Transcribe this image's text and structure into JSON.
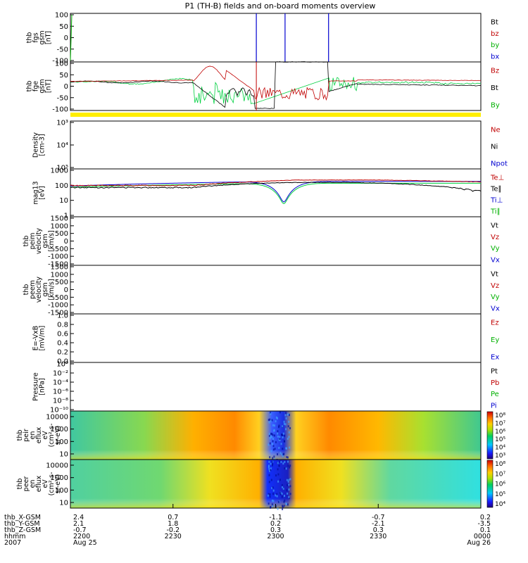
{
  "chart_data": {
    "type": "line",
    "title": "P1 (TH-B) fields and on-board moments overview",
    "panels": [
      {
        "id": "fgs",
        "ylabel_lines": [
          "thb",
          "fgs",
          "gsm",
          "[nT]"
        ],
        "scale": "linear",
        "ylim": [
          -100,
          100
        ],
        "ticks": [
          "100",
          "50",
          "0",
          "-50",
          "-100"
        ],
        "legend": [
          {
            "name": "Bt",
            "color": "#000000"
          },
          {
            "name": "bz",
            "color": "#c00000"
          },
          {
            "name": "by",
            "color": "#00b000"
          },
          {
            "name": "bx",
            "color": "#0000d0"
          }
        ],
        "series": [
          {
            "name": "bx",
            "x": [
              0.25,
              0.25,
              0.25,
              0.25,
              0.5,
              0.5,
              0.5,
              0.5
            ],
            "values": [
              100,
              -100,
              null,
              null,
              null,
              100,
              -100,
              null
            ]
          },
          {
            "name": "bx-2",
            "x": [
              0.62,
              0.62
            ],
            "values": [
              100,
              -100
            ]
          }
        ]
      },
      {
        "id": "fge",
        "ylabel_lines": [
          "thb",
          "fge",
          "gsm",
          "[nT]"
        ],
        "scale": "linear",
        "ylim": [
          -130,
          100
        ],
        "ticks": [
          "100",
          "50",
          "0",
          "-50",
          "-100"
        ],
        "legend": [
          {
            "name": "Bz",
            "color": "#c00000"
          },
          {
            "name": "Bt",
            "color": "#000000"
          },
          {
            "name": "By",
            "color": "#00b000"
          }
        ]
      },
      {
        "id": "density",
        "ylabel_lines": [
          "Density",
          "[cm-3]"
        ],
        "scale": "log",
        "ticks": [
          "10³",
          "10⁴",
          "10⁵"
        ],
        "legend": [
          {
            "name": "Ne",
            "color": "#c00000"
          },
          {
            "name": "Ni",
            "color": "#000000"
          },
          {
            "name": "Npot",
            "color": "#0000d0"
          }
        ]
      },
      {
        "id": "temperature",
        "ylabel_lines": [
          "mag13",
          "[eV]"
        ],
        "scale": "log",
        "ylim": [
          1,
          3000
        ],
        "ticks": [
          "1000",
          "100",
          "10",
          "1"
        ],
        "legend": [
          {
            "name": "Te⊥",
            "color": "#c00000"
          },
          {
            "name": "Te∥",
            "color": "#000000"
          },
          {
            "name": "Ti⊥",
            "color": "#0000d0"
          },
          {
            "name": "Ti∥",
            "color": "#00b000"
          }
        ]
      },
      {
        "id": "peim",
        "ylabel_lines": [
          "thb",
          "peim",
          "velocity",
          "gsm",
          "[km/s]"
        ],
        "scale": "linear",
        "ylim": [
          -1500,
          1500
        ],
        "ticks": [
          "1500",
          "1000",
          "500",
          "0",
          "-500",
          "-1000",
          "-1500"
        ],
        "legend": [
          {
            "name": "Vt",
            "color": "#000000"
          },
          {
            "name": "Vz",
            "color": "#c00000"
          },
          {
            "name": "Vy",
            "color": "#00b000"
          },
          {
            "name": "Vx",
            "color": "#0000d0"
          }
        ]
      },
      {
        "id": "peem",
        "ylabel_lines": [
          "thb",
          "peem",
          "velocity",
          "gsm",
          "[km/s]"
        ],
        "scale": "linear",
        "ylim": [
          -1500,
          1500
        ],
        "ticks": [
          "1500",
          "1000",
          "500",
          "0",
          "-500",
          "-1000",
          "-1500"
        ],
        "legend": [
          {
            "name": "Vt",
            "color": "#000000"
          },
          {
            "name": "Vz",
            "color": "#c00000"
          },
          {
            "name": "Vy",
            "color": "#00b000"
          },
          {
            "name": "Vx",
            "color": "#0000d0"
          }
        ]
      },
      {
        "id": "efield",
        "ylabel_lines": [
          "E=-VxB",
          "[mV/m]"
        ],
        "scale": "linear",
        "ylim": [
          0,
          1
        ],
        "ticks": [
          "1.0",
          "0.8",
          "0.6",
          "0.4",
          "0.2",
          "0.0"
        ],
        "legend": [
          {
            "name": "Ez",
            "color": "#c00000"
          },
          {
            "name": "Ey",
            "color": "#00b000"
          },
          {
            "name": "Ex",
            "color": "#0000d0"
          }
        ]
      },
      {
        "id": "pressure",
        "ylabel_lines": [
          "Pressure",
          "[nPa]"
        ],
        "scale": "log",
        "ticks": [
          "10⁰",
          "10⁻²",
          "10⁻⁴",
          "10⁻⁶",
          "10⁻⁸",
          "10⁻¹⁰"
        ],
        "legend": [
          {
            "name": "Pt",
            "color": "#000000"
          },
          {
            "name": "Pb",
            "color": "#c00000"
          },
          {
            "name": "Pe",
            "color": "#00b000"
          },
          {
            "name": "Pi",
            "color": "#0000d0"
          }
        ]
      },
      {
        "id": "peir_spec",
        "type": "heatmap",
        "ylabel_lines": [
          "thb",
          "peir",
          "en",
          "eflux",
          "eV",
          "(cm²-s-",
          "sr-eV)"
        ],
        "scale": "log",
        "ticks": [
          "10000",
          "1000",
          "100",
          "10"
        ],
        "colorbar_ticks": [
          "10⁸",
          "10⁷",
          "10⁶",
          "10⁵",
          "10⁴",
          "10³"
        ]
      },
      {
        "id": "peer_spec",
        "type": "heatmap",
        "ylabel_lines": [
          "thb",
          "peer",
          "en",
          "eflux",
          "eV",
          "(cm²-s-",
          "sr-eV)"
        ],
        "scale": "log",
        "ticks": [
          "10000",
          "1000",
          "100",
          "10"
        ],
        "colorbar_ticks": [
          "10⁸",
          "10⁷",
          "10⁶",
          "10⁵",
          "10⁴"
        ]
      }
    ],
    "xaxis": {
      "row_labels": [
        "thb_X-GSM",
        "thb_Y-GSM",
        "thb_Z-GSM",
        "hhmm",
        "2007"
      ],
      "ticks": [
        {
          "x": 0.0,
          "rows": [
            "2.4",
            "2.1",
            "-0.7",
            "2200",
            "Aug 25"
          ]
        },
        {
          "x": 0.25,
          "rows": [
            "0.7",
            "1.8",
            "-0.2",
            "2230",
            ""
          ]
        },
        {
          "x": 0.5,
          "rows": [
            "-1.1",
            "0.2",
            "0.3",
            "2300",
            ""
          ]
        },
        {
          "x": 0.75,
          "rows": [
            "-0.7",
            "-2.1",
            "0.3",
            "2330",
            ""
          ]
        },
        {
          "x": 1.0,
          "rows": [
            "0.2",
            "-3.5",
            "0.1",
            "0000",
            "Aug 26"
          ]
        }
      ]
    }
  }
}
